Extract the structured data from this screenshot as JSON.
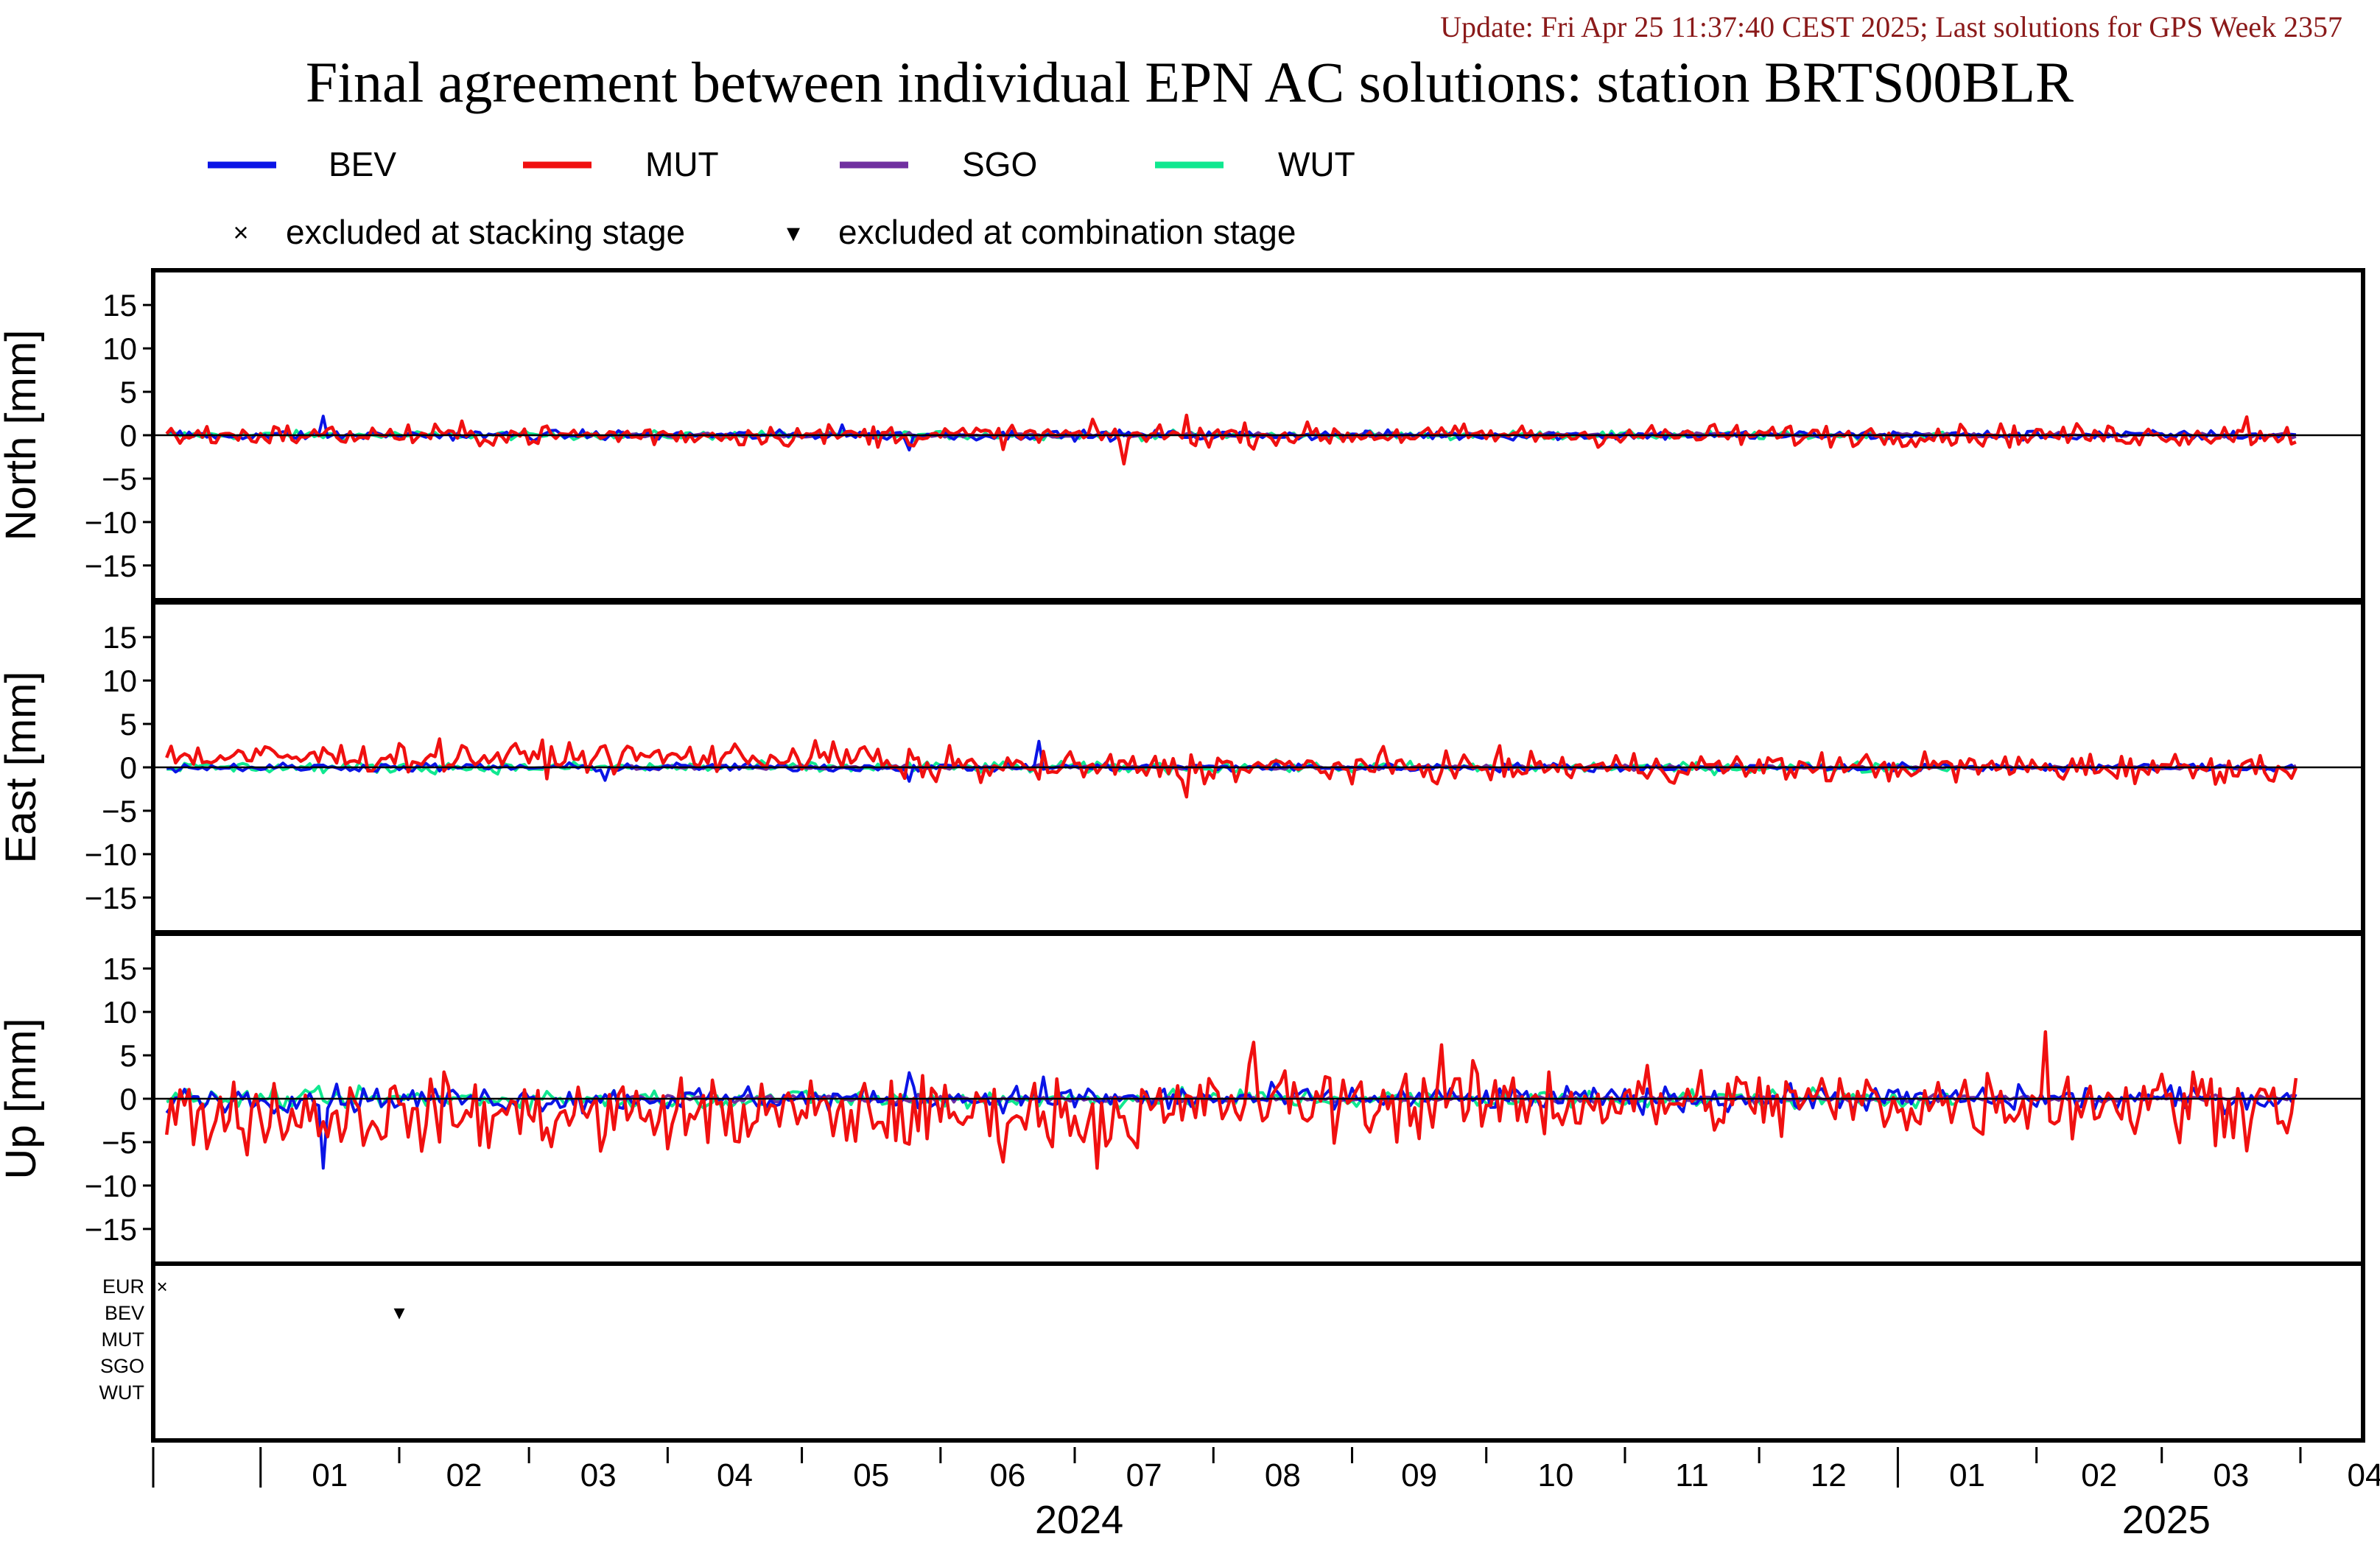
{
  "header": {
    "update_text": "Update: Fri Apr 25 11:37:40 CEST 2025; Last solutions for GPS Week 2357",
    "title": "Final agreement between individual EPN AC solutions: station BRTS00BLR"
  },
  "legend": {
    "series": [
      {
        "name": "BEV",
        "color": "#0a14e6"
      },
      {
        "name": "MUT",
        "color": "#f01010"
      },
      {
        "name": "SGO",
        "color": "#7030a0"
      },
      {
        "name": "WUT",
        "color": "#10e890"
      }
    ],
    "markers": [
      {
        "symbol": "×",
        "label": "excluded at stacking stage"
      },
      {
        "symbol": "▾",
        "label": "excluded at combination stage"
      }
    ]
  },
  "chart_data": {
    "type": "line",
    "x_axis": {
      "unit": "month",
      "start": "2023-12-08",
      "end": "2025-04-15",
      "month_labels": [
        "01",
        "02",
        "03",
        "04",
        "05",
        "06",
        "07",
        "08",
        "09",
        "10",
        "11",
        "12",
        "01",
        "02",
        "03",
        "04"
      ],
      "year_labels": [
        "2024",
        "2025"
      ]
    },
    "panels": [
      {
        "name": "north",
        "ylabel": "North [mm]",
        "ylim": [
          -19,
          19
        ],
        "yticks": [
          15,
          10,
          5,
          0,
          -5,
          -10,
          -15
        ],
        "series": [
          {
            "name": "BEV",
            "amplitude": 0.4,
            "spikes": [
              {
                "day": 35,
                "value": 2.2
              },
              {
                "day": 151,
                "value": 1.2
              },
              {
                "day": 166,
                "value": -1.7
              }
            ]
          },
          {
            "name": "MUT",
            "amplitude": 0.9,
            "spikes": [
              {
                "day": 214,
                "value": -3.3
              },
              {
                "day": 228,
                "value": 2.3
              },
              {
                "day": 465,
                "value": 2.1
              }
            ]
          },
          {
            "name": "SGO",
            "amplitude": 0.2,
            "spikes": []
          },
          {
            "name": "WUT",
            "amplitude": 0.35,
            "spikes": []
          }
        ]
      },
      {
        "name": "east",
        "ylabel": "East [mm]",
        "ylim": [
          -19,
          19
        ],
        "yticks": [
          15,
          10,
          5,
          0,
          -5,
          -10,
          -15
        ],
        "series": [
          {
            "name": "BEV",
            "amplitude": 0.35,
            "spikes": [
              {
                "day": 195,
                "value": 3.0
              },
              {
                "day": 166,
                "value": -1.6
              },
              {
                "day": 98,
                "value": -1.5
              }
            ]
          },
          {
            "name": "MUT",
            "amplitude": 1.2,
            "spikes": [
              {
                "day": 228,
                "value": -3.4
              },
              {
                "day": 175,
                "value": 2.5
              }
            ]
          },
          {
            "name": "SGO",
            "amplitude": 0.2,
            "spikes": []
          },
          {
            "name": "WUT",
            "amplitude": 0.45,
            "spikes": []
          }
        ]
      },
      {
        "name": "up",
        "ylabel": "Up [mm]",
        "ylim": [
          -19,
          19
        ],
        "yticks": [
          15,
          10,
          5,
          0,
          -5,
          -10,
          -15
        ],
        "series": [
          {
            "name": "BEV",
            "amplitude": 1.0,
            "spikes": [
              {
                "day": 35,
                "value": -8.0
              },
              {
                "day": 166,
                "value": 3.0
              },
              {
                "day": 196,
                "value": 2.5
              }
            ]
          },
          {
            "name": "MUT",
            "amplitude": 3.0,
            "spikes": [
              {
                "day": 243,
                "value": 6.5
              },
              {
                "day": 285,
                "value": 6.2
              },
              {
                "day": 208,
                "value": -8.0
              },
              {
                "day": 420,
                "value": 7.7
              },
              {
                "day": 478,
                "value": 5.7
              }
            ]
          },
          {
            "name": "SGO",
            "amplitude": 0.3,
            "spikes": []
          },
          {
            "name": "WUT",
            "amplitude": 0.8,
            "spikes": [
              {
                "day": 420,
                "value": 1.8
              }
            ]
          }
        ]
      }
    ],
    "exclusion_panel": {
      "rows": [
        {
          "label": "EUR",
          "color": "#000000"
        },
        {
          "label": "BEV",
          "color": "#0a14e6"
        },
        {
          "label": "MUT",
          "color": "#f01010"
        },
        {
          "label": "SGO",
          "color": "#7030a0"
        },
        {
          "label": "WUT",
          "color": "#10e890"
        }
      ],
      "markers": [
        {
          "row": "EUR",
          "symbol": "×",
          "day": 2
        },
        {
          "row": "BEV",
          "symbol": "▾",
          "day": 55
        }
      ]
    }
  }
}
